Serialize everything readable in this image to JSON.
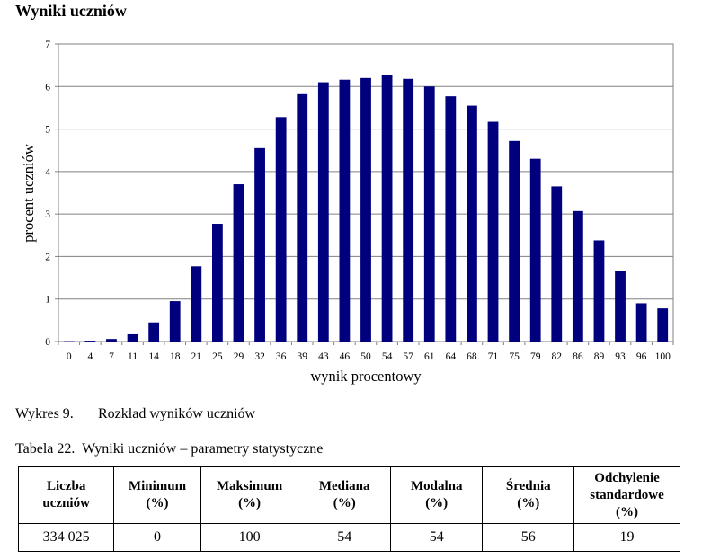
{
  "title": "Wyniki uczniów",
  "chart_data": {
    "type": "bar",
    "title": "",
    "xlabel": "wynik procentowy",
    "ylabel": "procent uczniów",
    "ylim": [
      0,
      7
    ],
    "yticks": [
      0,
      1,
      2,
      3,
      4,
      5,
      6,
      7
    ],
    "grid": true,
    "categories": [
      "0",
      "4",
      "7",
      "11",
      "14",
      "18",
      "21",
      "25",
      "29",
      "32",
      "36",
      "39",
      "43",
      "46",
      "50",
      "54",
      "57",
      "61",
      "64",
      "68",
      "71",
      "75",
      "79",
      "82",
      "86",
      "89",
      "93",
      "96",
      "100"
    ],
    "values": [
      0.01,
      0.02,
      0.06,
      0.17,
      0.45,
      0.95,
      1.77,
      2.77,
      3.7,
      4.55,
      5.28,
      5.82,
      6.1,
      6.16,
      6.2,
      6.26,
      6.18,
      6.0,
      5.77,
      5.55,
      5.17,
      4.72,
      4.3,
      3.65,
      3.07,
      2.38,
      1.67,
      0.9,
      0.78
    ],
    "bar_color": "#00007f"
  },
  "figure_caption": {
    "number": "Wykres 9.",
    "text": "Rozkład wyników uczniów"
  },
  "table_caption": {
    "number": "Tabela 22.",
    "text": "Wyniki uczniów – parametry statystyczne"
  },
  "table": {
    "headers": [
      [
        "Liczba",
        "uczniów"
      ],
      [
        "Minimum",
        "(%)"
      ],
      [
        "Maksimum",
        "(%)"
      ],
      [
        "Mediana",
        "(%)"
      ],
      [
        "Modalna",
        "(%)"
      ],
      [
        "Średnia",
        "(%)"
      ],
      [
        "Odchylenie",
        "standardowe",
        "(%)"
      ]
    ],
    "row": [
      "334 025",
      "0",
      "100",
      "54",
      "54",
      "56",
      "19"
    ]
  }
}
